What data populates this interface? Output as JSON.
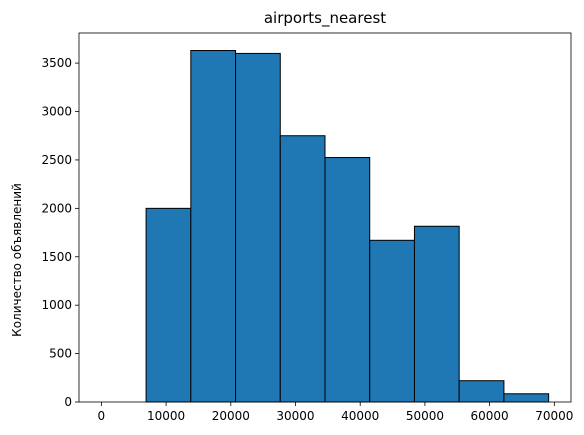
{
  "chart_data": {
    "type": "bar",
    "title": "airports_nearest",
    "xlabel": "",
    "ylabel": "Количество объявлений",
    "bins": [
      {
        "x0": 0,
        "x1": 6912,
        "count": 0
      },
      {
        "x0": 6912,
        "x1": 13824,
        "count": 2000
      },
      {
        "x0": 13824,
        "x1": 20736,
        "count": 3630
      },
      {
        "x0": 20736,
        "x1": 27648,
        "count": 3600
      },
      {
        "x0": 27648,
        "x1": 34560,
        "count": 2750
      },
      {
        "x0": 34560,
        "x1": 41472,
        "count": 2525
      },
      {
        "x0": 41472,
        "x1": 48384,
        "count": 1670
      },
      {
        "x0": 48384,
        "x1": 55296,
        "count": 1815
      },
      {
        "x0": 55296,
        "x1": 62208,
        "count": 220
      },
      {
        "x0": 62208,
        "x1": 69120,
        "count": 85
      }
    ],
    "xlim": [
      -3456,
      72576
    ],
    "ylim": [
      0,
      3811
    ],
    "xticks": [
      0,
      10000,
      20000,
      30000,
      40000,
      50000,
      60000,
      70000
    ],
    "yticks": [
      0,
      500,
      1000,
      1500,
      2000,
      2500,
      3000,
      3500
    ],
    "bar_color": "#1f77b4",
    "edge_color": "#000000",
    "grid": false,
    "legend": false
  }
}
